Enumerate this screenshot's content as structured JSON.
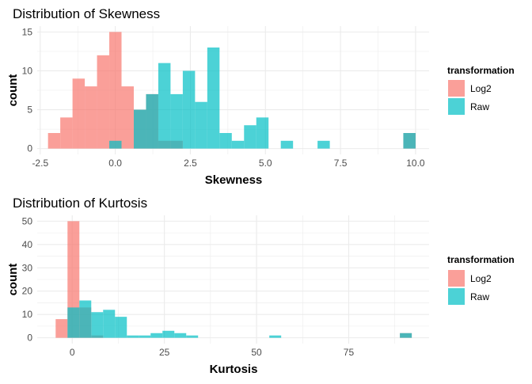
{
  "colors": {
    "Log2": "#F8766D",
    "Raw": "#00BFC4"
  },
  "chart_data": [
    {
      "type": "histogram",
      "title": "Distribution of Skewness",
      "xlabel": "Skewness",
      "ylabel": "count",
      "xlim": [
        -2.6,
        10.45
      ],
      "ylim": [
        -0.75,
        15.75
      ],
      "bin_range": [
        -2.24,
        10.0
      ],
      "x_ticks": [
        -2.5,
        0.0,
        2.5,
        5.0,
        7.5,
        10.0
      ],
      "x_tick_labels": [
        "-2.5",
        "0.0",
        "2.5",
        "5.0",
        "7.5",
        "10.0"
      ],
      "y_ticks": [
        0,
        5,
        10,
        15
      ],
      "y_tick_labels": [
        "0",
        "5",
        "10",
        "15"
      ],
      "grid": true,
      "legend": {
        "title": "transformation",
        "position": "right",
        "entries": [
          "Log2",
          "Raw"
        ]
      },
      "series": [
        {
          "name": "Log2",
          "counts": [
            2,
            4,
            9,
            8,
            12,
            15,
            8,
            5,
            7,
            1,
            1,
            0,
            0,
            0,
            0,
            0,
            0,
            0,
            0,
            0,
            0,
            0,
            0,
            0,
            0,
            0,
            0,
            0,
            0,
            2
          ]
        },
        {
          "name": "Raw",
          "counts": [
            0,
            0,
            0,
            0,
            0,
            1,
            0,
            5,
            7,
            11,
            7,
            10,
            6,
            13,
            2,
            1,
            3,
            4,
            0,
            1,
            0,
            0,
            1,
            0,
            0,
            0,
            0,
            0,
            0,
            2
          ]
        }
      ]
    },
    {
      "type": "histogram",
      "title": "Distribution of Kurtosis",
      "xlabel": "Kurtosis",
      "ylabel": "count",
      "xlim": [
        -9.5,
        96.8
      ],
      "ylim": [
        -2.5,
        52.5
      ],
      "bin_range": [
        -4.5,
        92.1
      ],
      "x_ticks": [
        0,
        25,
        50,
        75
      ],
      "x_tick_labels": [
        "0",
        "25",
        "50",
        "75"
      ],
      "y_ticks": [
        0,
        10,
        20,
        30,
        40,
        50
      ],
      "y_tick_labels": [
        "0",
        "10",
        "20",
        "30",
        "40",
        "50"
      ],
      "grid": true,
      "legend": {
        "title": "transformation",
        "position": "right",
        "entries": [
          "Log2",
          "Raw"
        ]
      },
      "series": [
        {
          "name": "Log2",
          "counts": [
            8,
            50,
            13,
            1,
            0,
            0,
            0,
            0,
            0,
            0,
            0,
            0,
            0,
            0,
            0,
            0,
            0,
            0,
            0,
            0,
            0,
            0,
            0,
            0,
            0,
            0,
            0,
            0,
            0,
            2
          ]
        },
        {
          "name": "Raw",
          "counts": [
            0,
            13,
            16,
            11,
            12,
            9,
            1,
            1,
            2,
            3,
            2,
            1,
            0,
            0,
            0,
            0,
            0,
            0,
            1,
            0,
            0,
            0,
            0,
            0,
            0,
            0,
            0,
            0,
            0,
            2
          ]
        }
      ]
    }
  ]
}
